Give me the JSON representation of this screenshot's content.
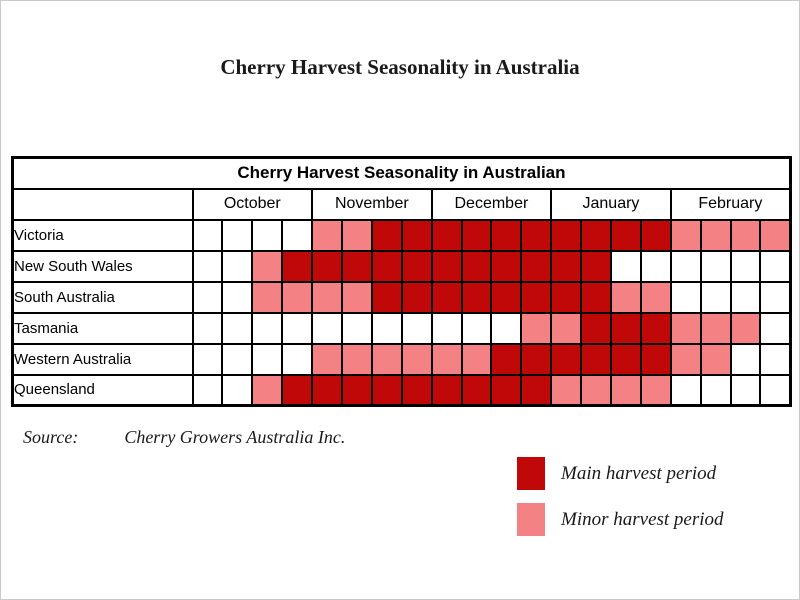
{
  "page": {
    "title": "Cherry Harvest Seasonality in Australia",
    "source_label": "Source:",
    "source_value": "Cherry Growers Australia Inc."
  },
  "table": {
    "title": "Cherry Harvest Seasonality in Australian",
    "months": [
      "October",
      "November",
      "December",
      "January",
      "February"
    ]
  },
  "legend": {
    "main_label": "Main harvest period",
    "minor_label": "Minor harvest period"
  },
  "chart_data": {
    "type": "heatmap",
    "title": "Cherry Harvest Seasonality in Australian",
    "x_months": [
      "October",
      "November",
      "December",
      "January",
      "February"
    ],
    "weeks_per_month": 4,
    "colors": {
      "main": "#C00808",
      "minor": "#F48184",
      "none": "#FFFFFF"
    },
    "legend": [
      {
        "key": "main",
        "label": "Main harvest period"
      },
      {
        "key": "minor",
        "label": "Minor harvest period"
      }
    ],
    "rows": [
      {
        "region": "Victoria",
        "cells": [
          "none",
          "none",
          "none",
          "none",
          "minor",
          "minor",
          "main",
          "main",
          "main",
          "main",
          "main",
          "main",
          "main",
          "main",
          "main",
          "main",
          "minor",
          "minor",
          "minor",
          "minor"
        ]
      },
      {
        "region": "New South Wales",
        "cells": [
          "none",
          "none",
          "minor",
          "main",
          "main",
          "main",
          "main",
          "main",
          "main",
          "main",
          "main",
          "main",
          "main",
          "main",
          "none",
          "none",
          "none",
          "none",
          "none",
          "none"
        ]
      },
      {
        "region": "South Australia",
        "cells": [
          "none",
          "none",
          "minor",
          "minor",
          "minor",
          "minor",
          "main",
          "main",
          "main",
          "main",
          "main",
          "main",
          "main",
          "main",
          "minor",
          "minor",
          "none",
          "none",
          "none",
          "none"
        ]
      },
      {
        "region": "Tasmania",
        "cells": [
          "none",
          "none",
          "none",
          "none",
          "none",
          "none",
          "none",
          "none",
          "none",
          "none",
          "none",
          "minor",
          "minor",
          "main",
          "main",
          "main",
          "minor",
          "minor",
          "minor",
          "none"
        ]
      },
      {
        "region": "Western Australia",
        "cells": [
          "none",
          "none",
          "none",
          "none",
          "minor",
          "minor",
          "minor",
          "minor",
          "minor",
          "minor",
          "main",
          "main",
          "main",
          "main",
          "main",
          "main",
          "minor",
          "minor",
          "none",
          "none"
        ]
      },
      {
        "region": "Queensland",
        "cells": [
          "none",
          "none",
          "minor",
          "main",
          "main",
          "main",
          "main",
          "main",
          "main",
          "main",
          "main",
          "main",
          "minor",
          "minor",
          "minor",
          "minor",
          "none",
          "none",
          "none",
          "none"
        ]
      }
    ],
    "source": "Cherry Growers Australia Inc."
  }
}
